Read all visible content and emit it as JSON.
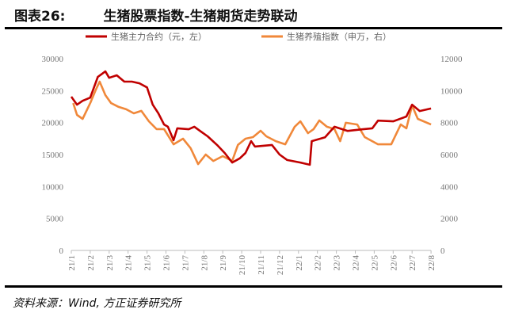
{
  "header": {
    "figure_label": "图表26:",
    "title": "生猪股票指数-生猪期货走势联动"
  },
  "source": "资料来源：Wind, 方正证券研究所",
  "chart_data": {
    "type": "line",
    "title": "生猪股票指数-生猪期货走势联动",
    "x_unit": "months since 21/1",
    "x_ticks": [
      "21/1",
      "21/2",
      "21/3",
      "21/4",
      "21/5",
      "21/6",
      "21/7",
      "21/8",
      "21/9",
      "21/10",
      "21/11",
      "21/12",
      "22/1",
      "22/2",
      "22/3",
      "22/4",
      "22/5",
      "22/6",
      "22/7",
      "22/8"
    ],
    "y_left": {
      "ticks": [
        "0",
        "5000",
        "10000",
        "15000",
        "20000",
        "25000",
        "30000"
      ],
      "range": [
        0,
        30000
      ]
    },
    "y_right": {
      "ticks": [
        "0",
        "2000",
        "4000",
        "6000",
        "8000",
        "10000",
        "12000"
      ],
      "range": [
        0,
        12000
      ]
    },
    "legend_position": "top",
    "series": [
      {
        "name": "生猪主力合约（元，左）",
        "axis": "left",
        "color": "#C00000",
        "x": [
          0,
          0.3,
          0.6,
          1.0,
          1.4,
          1.8,
          2.0,
          2.4,
          2.8,
          3.2,
          3.6,
          4.0,
          4.3,
          4.6,
          4.9,
          5.1,
          5.4,
          5.6,
          6.2,
          6.5,
          6.8,
          7.2,
          7.7,
          8.1,
          8.5,
          8.9,
          9.2,
          9.5,
          9.7,
          10.6,
          11.0,
          11.4,
          12.1,
          12.6,
          12.7,
          13.4,
          13.9,
          14.6,
          15.4,
          15.9,
          16.2,
          17.0,
          17.7,
          18.0,
          18.4,
          19.0
        ],
        "y": [
          24050,
          22800,
          23400,
          23900,
          27150,
          28000,
          27000,
          27400,
          26400,
          26400,
          26150,
          25500,
          22800,
          21450,
          19700,
          19350,
          17250,
          19100,
          18950,
          19350,
          18700,
          17850,
          16500,
          15250,
          13750,
          14400,
          15250,
          17100,
          16250,
          16500,
          15000,
          14150,
          13750,
          13400,
          17100,
          17700,
          19350,
          18700,
          18950,
          19100,
          20300,
          20200,
          20950,
          22800,
          21800,
          22200
        ]
      },
      {
        "name": "生猪养殖指数（申万，右）",
        "axis": "right",
        "color": "#F0883A",
        "x": [
          0.1,
          0.3,
          0.6,
          1.0,
          1.3,
          1.5,
          1.8,
          2.1,
          2.5,
          2.9,
          3.3,
          3.7,
          4.1,
          4.5,
          4.9,
          5.4,
          5.9,
          6.3,
          6.7,
          7.1,
          7.5,
          8.0,
          8.5,
          8.8,
          9.2,
          9.6,
          10.0,
          10.3,
          10.8,
          11.3,
          11.8,
          12.1,
          12.5,
          12.8,
          13.1,
          13.5,
          13.9,
          14.2,
          14.5,
          15.1,
          15.5,
          16.2,
          16.9,
          17.4,
          17.7,
          18.0,
          18.3,
          19.0
        ],
        "y": [
          9220,
          8480,
          8230,
          9220,
          10070,
          10560,
          9720,
          9220,
          8980,
          8830,
          8580,
          8730,
          8080,
          7590,
          7590,
          6640,
          6990,
          6400,
          5400,
          6000,
          5600,
          5900,
          5600,
          6600,
          6990,
          7090,
          7490,
          7140,
          6840,
          6640,
          7740,
          8080,
          7340,
          7590,
          8130,
          7740,
          7590,
          6840,
          7990,
          7880,
          7090,
          6640,
          6640,
          7880,
          7640,
          9070,
          8230,
          7880
        ]
      }
    ]
  }
}
